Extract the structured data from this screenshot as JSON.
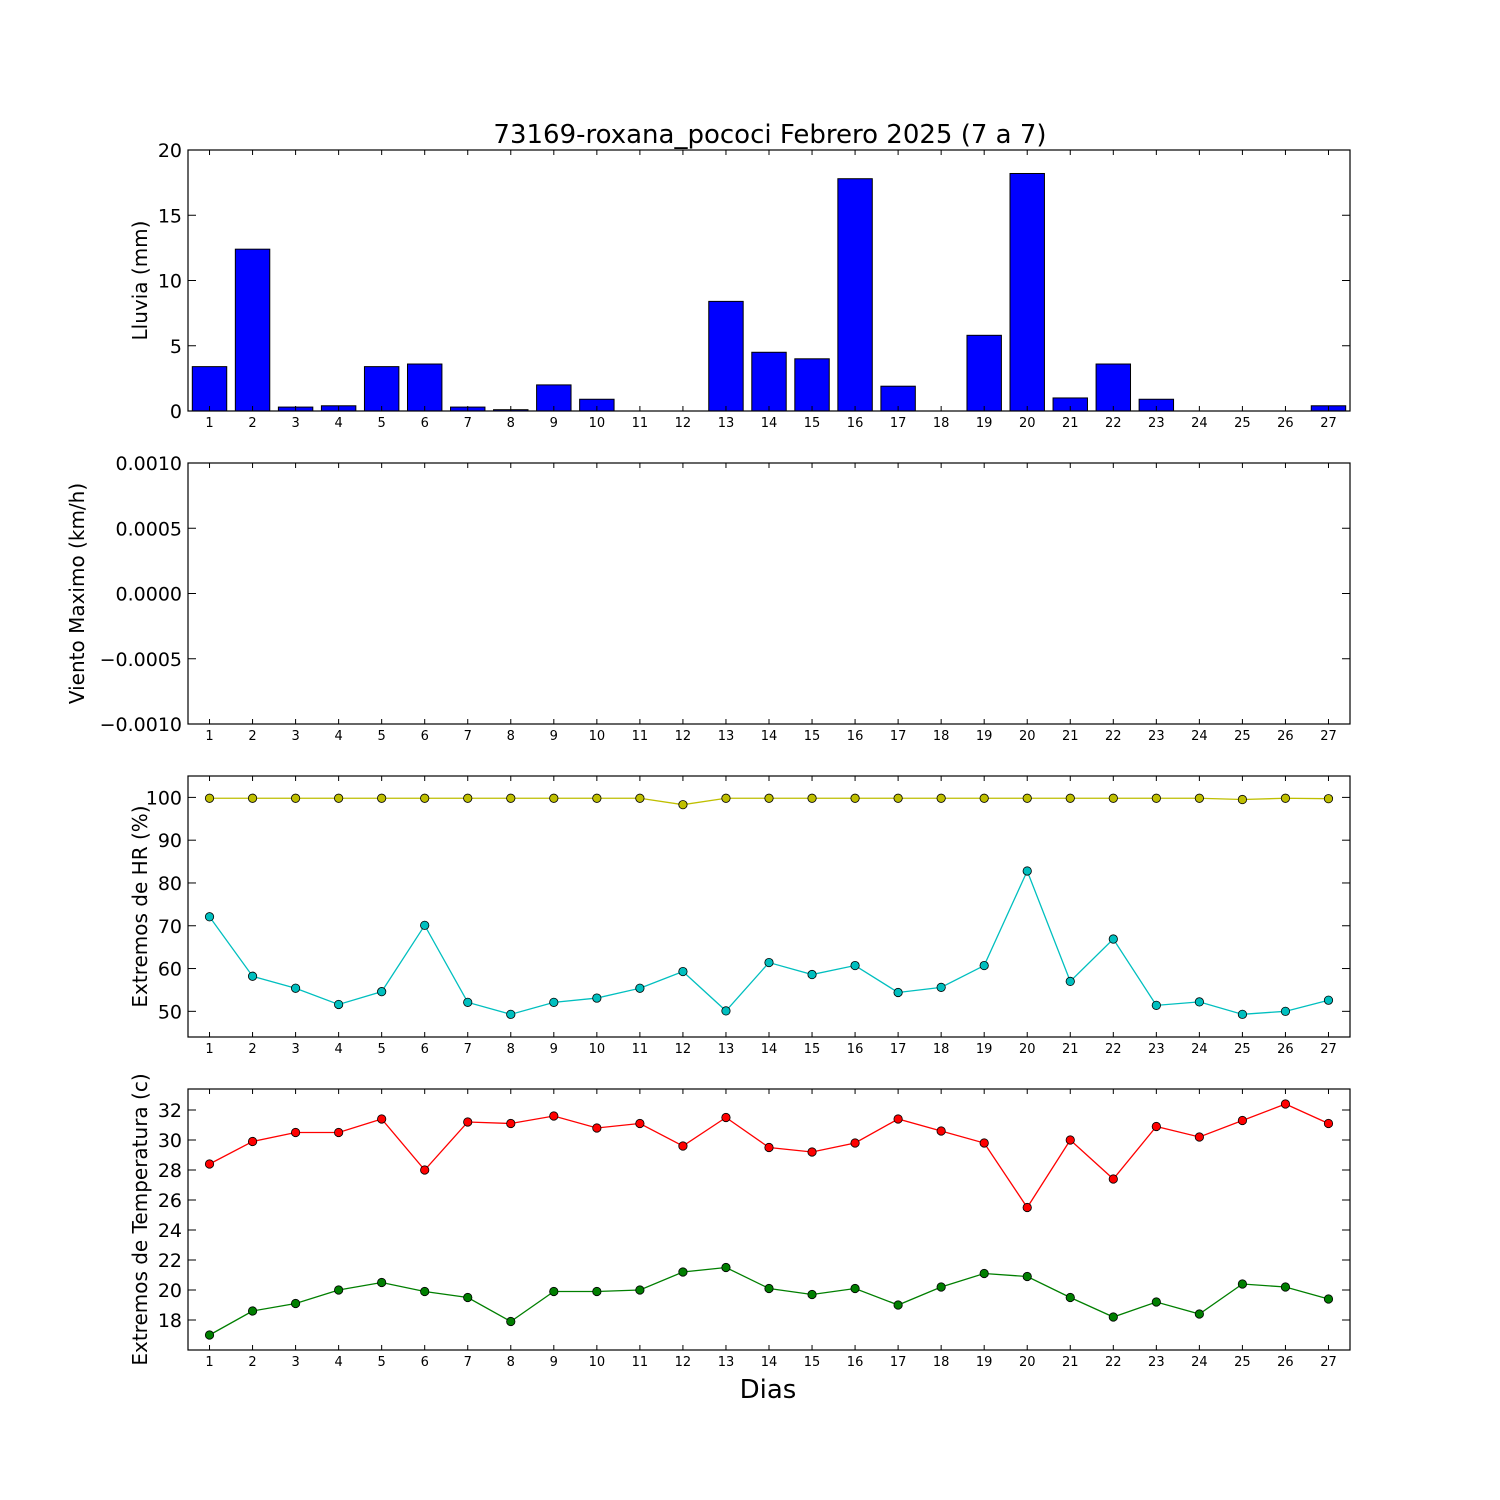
{
  "title": "73169-roxana_pococi Febrero 2025  (7 a 7)",
  "xlabel": "Dias",
  "days": [
    1,
    2,
    3,
    4,
    5,
    6,
    7,
    8,
    9,
    10,
    11,
    12,
    13,
    14,
    15,
    16,
    17,
    18,
    19,
    20,
    21,
    22,
    23,
    24,
    25,
    26,
    27
  ],
  "chart_data": [
    {
      "type": "bar",
      "ylabel": "Lluvia (mm)",
      "ylim": [
        0,
        20
      ],
      "yticks": [
        "0",
        "5",
        "10",
        "15",
        "20"
      ],
      "ytick_values": [
        0,
        5,
        10,
        15,
        20
      ],
      "color": "#0000ff",
      "categories": [
        1,
        2,
        3,
        4,
        5,
        6,
        7,
        8,
        9,
        10,
        11,
        12,
        13,
        14,
        15,
        16,
        17,
        18,
        19,
        20,
        21,
        22,
        23,
        24,
        25,
        26,
        27
      ],
      "values": [
        3.4,
        12.4,
        0.3,
        0.4,
        3.4,
        3.6,
        0.3,
        0.1,
        2.0,
        0.9,
        0.0,
        0.0,
        8.4,
        4.5,
        4.0,
        17.8,
        1.9,
        0.0,
        5.8,
        18.2,
        1.0,
        3.6,
        0.9,
        0.0,
        0.0,
        0.0,
        0.4
      ]
    },
    {
      "type": "line",
      "ylabel": "Viento Maximo (km/h)",
      "ylim": [
        -0.001,
        0.001
      ],
      "yticks": [
        "−0.0010",
        "−0.0005",
        "0.0000",
        "0.0005",
        "0.0010"
      ],
      "ytick_values": [
        -0.001,
        -0.0005,
        0,
        0.0005,
        0.001
      ],
      "series": []
    },
    {
      "type": "line",
      "ylabel": "Extremos de HR (%)",
      "ylim": [
        44,
        105
      ],
      "yticks": [
        "50",
        "60",
        "70",
        "80",
        "90",
        "100"
      ],
      "ytick_values": [
        50,
        60,
        70,
        80,
        90,
        100
      ],
      "series": [
        {
          "color": "#bfbf00",
          "values": [
            99.8,
            99.8,
            99.8,
            99.8,
            99.8,
            99.8,
            99.8,
            99.8,
            99.8,
            99.8,
            99.8,
            98.3,
            99.8,
            99.8,
            99.8,
            99.8,
            99.8,
            99.8,
            99.8,
            99.8,
            99.8,
            99.8,
            99.8,
            99.8,
            99.5,
            99.8,
            99.7
          ]
        },
        {
          "color": "#00bfbf",
          "values": [
            72.1,
            58.2,
            55.4,
            51.6,
            54.6,
            70.1,
            52.1,
            49.3,
            52.1,
            53.1,
            55.4,
            59.3,
            50.1,
            61.4,
            58.6,
            60.7,
            54.4,
            55.6,
            60.7,
            82.8,
            57.0,
            66.9,
            51.4,
            52.2,
            49.3,
            50.0,
            52.6
          ]
        }
      ]
    },
    {
      "type": "line",
      "ylabel": "Extremos de Temperatura (c)",
      "ylim": [
        16,
        33.4
      ],
      "yticks": [
        "18",
        "20",
        "22",
        "24",
        "26",
        "28",
        "30",
        "32"
      ],
      "ytick_values": [
        18,
        20,
        22,
        24,
        26,
        28,
        30,
        32
      ],
      "series": [
        {
          "color": "#ff0000",
          "values": [
            28.4,
            29.9,
            30.5,
            30.5,
            31.4,
            28.0,
            31.2,
            31.1,
            31.6,
            30.8,
            31.1,
            29.6,
            31.5,
            29.5,
            29.2,
            29.8,
            31.4,
            30.6,
            29.8,
            25.5,
            30.0,
            27.4,
            30.9,
            30.2,
            31.3,
            32.4,
            31.1
          ]
        },
        {
          "color": "#007f00",
          "values": [
            17.0,
            18.6,
            19.1,
            20.0,
            20.5,
            19.9,
            19.5,
            17.9,
            19.9,
            19.9,
            20.0,
            21.2,
            21.5,
            20.1,
            19.7,
            20.1,
            19.0,
            20.2,
            21.1,
            20.9,
            19.5,
            18.2,
            19.2,
            18.4,
            20.4,
            20.2,
            19.4
          ]
        }
      ]
    }
  ]
}
